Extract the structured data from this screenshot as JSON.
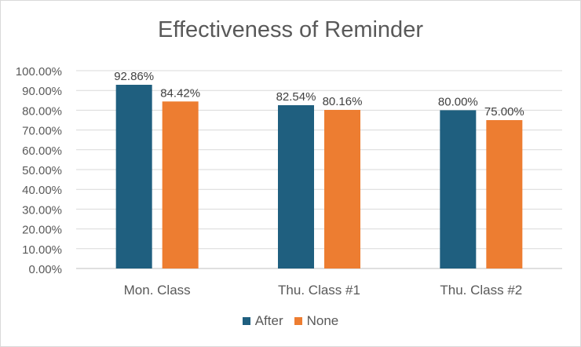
{
  "chart_data": {
    "type": "bar",
    "title": "Effectiveness of Reminder",
    "categories": [
      "Mon. Class",
      "Thu. Class #1",
      "Thu. Class #2"
    ],
    "series": [
      {
        "name": "After",
        "color": "#1f5f7f",
        "values": [
          92.86,
          82.54,
          80.0
        ],
        "labels": [
          "92.86%",
          "82.54%",
          "80.00%"
        ]
      },
      {
        "name": "None",
        "color": "#ed7d31",
        "values": [
          84.42,
          80.16,
          75.0
        ],
        "labels": [
          "84.42%",
          "80.16%",
          "75.00%"
        ]
      }
    ],
    "ylim": [
      0,
      100
    ],
    "yticks": [
      "0.00%",
      "10.00%",
      "20.00%",
      "30.00%",
      "40.00%",
      "50.00%",
      "60.00%",
      "70.00%",
      "80.00%",
      "90.00%",
      "100.00%"
    ],
    "xlabel": "",
    "ylabel": "",
    "grid": true,
    "legend_position": "bottom"
  }
}
